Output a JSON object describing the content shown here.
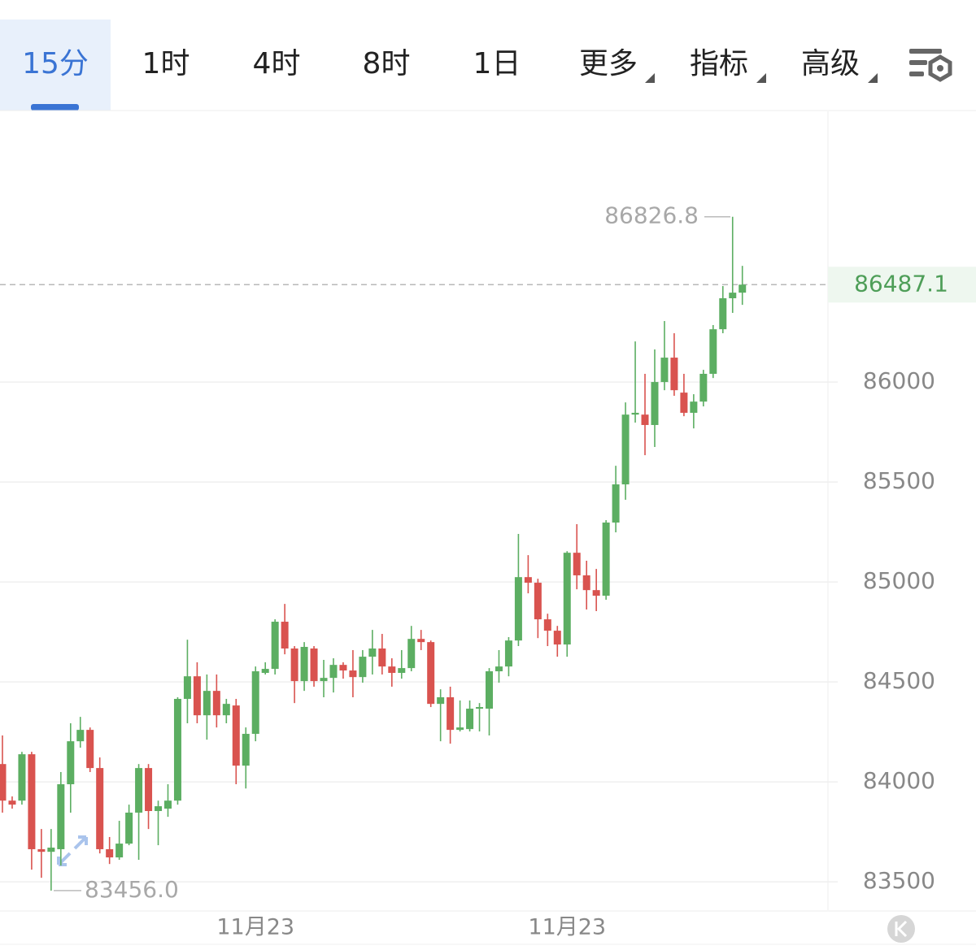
{
  "tabs": [
    "15分",
    "1时",
    "4时",
    "8时",
    "1日",
    "更多",
    "指标",
    "高级"
  ],
  "chart_data": {
    "type": "candlestick",
    "categories": [
      null,
      null,
      null,
      null,
      null,
      null,
      null,
      null,
      null,
      null,
      null,
      null,
      null,
      null,
      null,
      null,
      null,
      null,
      null,
      null,
      null,
      null,
      null,
      null,
      null,
      null,
      "11月23",
      null,
      null,
      null,
      null,
      null,
      null,
      null,
      null,
      null,
      null,
      null,
      null,
      null,
      null,
      null,
      null,
      null,
      null,
      null,
      null,
      null,
      null,
      null,
      null,
      null,
      null,
      null,
      null,
      null,
      null,
      null,
      "11月23",
      null,
      null,
      null,
      null,
      null,
      null,
      null,
      null,
      null,
      null,
      null,
      null,
      null,
      null,
      null,
      null,
      null,
      null
    ],
    "open": [
      84089,
      83906,
      83906,
      84138,
      83663,
      83650,
      83663,
      83988,
      84203,
      84260,
      84069,
      83663,
      83622,
      83691,
      83846,
      84069,
      83854,
      83866,
      83906,
      84415,
      84528,
      84333,
      84455,
      84333,
      84382,
      84081,
      84240,
      84545,
      84565,
      84801,
      84667,
      84504,
      84667,
      84504,
      84520,
      84585,
      84557,
      84524,
      84626,
      84667,
      84577,
      84545,
      84569,
      84715,
      84699,
      84390,
      84423,
      84260,
      84264,
      84366,
      84366,
      84553,
      84577,
      84707,
      85024,
      84996,
      84813,
      84756,
      84687,
      85146,
      85033,
      84959,
      84931,
      85297,
      85488,
      85837,
      85837,
      85785,
      86000,
      86122,
      85947,
      85846,
      85902,
      86041,
      86264,
      86419,
      86447
    ],
    "high": [
      84232,
      83927,
      84150,
      84150,
      83764,
      83764,
      84049,
      84293,
      84325,
      84272,
      84122,
      83724,
      83805,
      83886,
      84089,
      84089,
      83906,
      83988,
      84423,
      84711,
      84598,
      84537,
      84537,
      84415,
      84415,
      84272,
      84577,
      84598,
      84813,
      84890,
      84679,
      84699,
      84679,
      84610,
      84618,
      84598,
      84659,
      84659,
      84760,
      84740,
      84618,
      84659,
      84780,
      84760,
      84707,
      84463,
      84476,
      84407,
      84407,
      84394,
      84569,
      84659,
      84724,
      85240,
      85134,
      85016,
      84841,
      84780,
      85154,
      85289,
      85106,
      85065,
      85309,
      85581,
      85898,
      86203,
      86041,
      86163,
      86305,
      86244,
      86041,
      85939,
      86061,
      86285,
      86480,
      86826.8,
      86581
    ],
    "low": [
      83846,
      83866,
      83886,
      83561,
      83520,
      83456,
      83581,
      83846,
      84171,
      84049,
      83642,
      83589,
      83610,
      83683,
      83610,
      83764,
      83683,
      83825,
      83886,
      84293,
      84293,
      84211,
      84272,
      84293,
      83988,
      83967,
      84203,
      84537,
      84537,
      84638,
      84394,
      84455,
      84476,
      84423,
      84447,
      84516,
      84423,
      84496,
      84537,
      84537,
      84476,
      84516,
      84553,
      84659,
      84374,
      84203,
      84191,
      84252,
      84252,
      84252,
      84232,
      84496,
      84528,
      84679,
      84943,
      84719,
      84679,
      84626,
      84626,
      84963,
      84862,
      84854,
      84911,
      85248,
      85411,
      85797,
      85634,
      85675,
      85959,
      85931,
      85829,
      85768,
      85878,
      86020,
      86244,
      86346,
      86386
    ],
    "close": [
      83906,
      83886,
      84138,
      83663,
      83650,
      83671,
      83988,
      84203,
      84260,
      84069,
      83663,
      83622,
      83691,
      83846,
      84069,
      83854,
      83878,
      83906,
      84415,
      84528,
      84333,
      84455,
      84333,
      84390,
      84081,
      84240,
      84553,
      84565,
      84801,
      84667,
      84504,
      84675,
      84504,
      84520,
      84585,
      84557,
      84524,
      84626,
      84667,
      84577,
      84545,
      84569,
      84715,
      84699,
      84390,
      84423,
      84260,
      84272,
      84366,
      84374,
      84553,
      84577,
      84707,
      85024,
      84996,
      84813,
      84756,
      84687,
      85146,
      85033,
      84959,
      84931,
      85297,
      85488,
      85837,
      85846,
      85785,
      86000,
      86122,
      85959,
      85846,
      85902,
      86041,
      86264,
      86419,
      86447,
      86487.1
    ],
    "up_color": "#5cae62",
    "down_color": "#d9534f",
    "ylim": [
      83358,
      87354
    ],
    "yticks": [
      83500,
      84000,
      84500,
      85000,
      85500,
      86000
    ],
    "grid": true,
    "last_price": 86487.1,
    "high_mark": 86826.8,
    "low_mark": {
      "value": 83456,
      "label": "83456.0"
    }
  }
}
